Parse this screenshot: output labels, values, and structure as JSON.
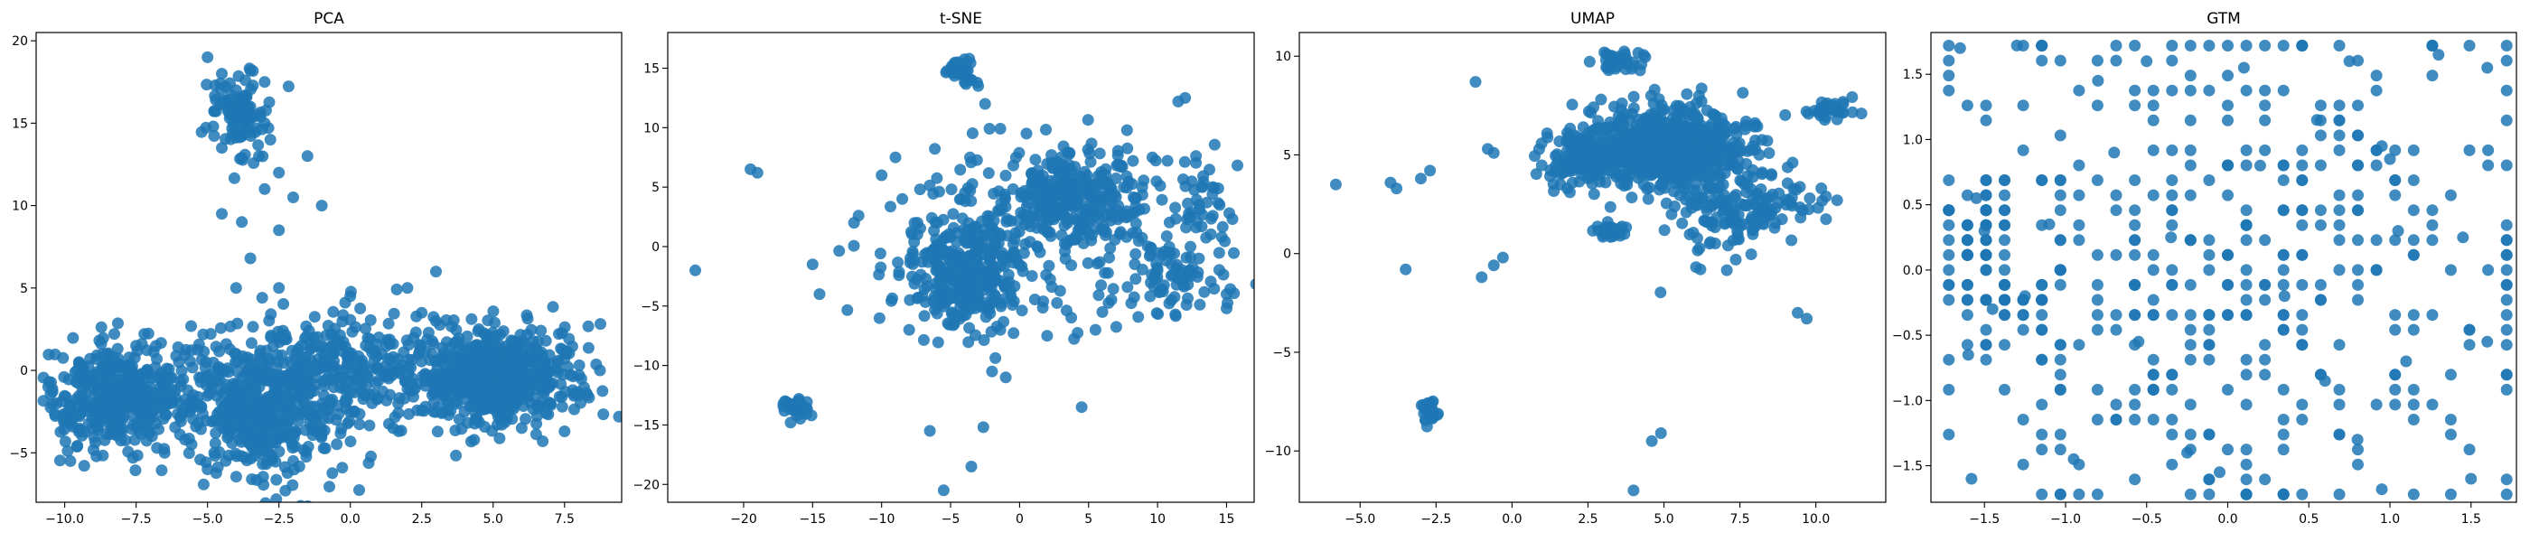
{
  "chart_data": [
    {
      "type": "scatter",
      "title": "PCA",
      "xlabel": "",
      "ylabel": "",
      "xlim": [
        -11.0,
        9.5
      ],
      "ylim": [
        -8.0,
        20.5
      ],
      "xticks": [
        -10.0,
        -7.5,
        -5.0,
        -2.5,
        0.0,
        2.5,
        5.0,
        7.5
      ],
      "xtick_labels": [
        "−10.0",
        "−7.5",
        "−5.0",
        "−2.5",
        "0.0",
        "2.5",
        "5.0",
        "7.5"
      ],
      "yticks": [
        -5,
        0,
        5,
        10,
        15,
        20
      ],
      "ytick_labels": [
        "−5",
        "0",
        "5",
        "10",
        "15",
        "20"
      ],
      "grid": false,
      "series": [
        {
          "color": "#1f77b4",
          "points": [
            [
              -5.0,
              19.0
            ],
            [
              -4.5,
              18.0
            ],
            [
              -3.5,
              18.2
            ],
            [
              -4.0,
              17.0
            ],
            [
              -3.0,
              17.5
            ],
            [
              -3.5,
              16.0
            ],
            [
              -4.2,
              15.5
            ],
            [
              -3.0,
              15.0
            ],
            [
              -4.8,
              14.8
            ],
            [
              -3.8,
              14.2
            ],
            [
              -2.8,
              14.0
            ],
            [
              -4.5,
              13.5
            ],
            [
              -3.2,
              13.0
            ],
            [
              -2.5,
              12.0
            ],
            [
              -1.5,
              13.0
            ],
            [
              -3.0,
              11.0
            ],
            [
              -2.0,
              10.5
            ],
            [
              -1.0,
              10.0
            ],
            [
              -4.5,
              9.5
            ],
            [
              -3.8,
              9.0
            ],
            [
              -2.5,
              8.5
            ],
            [
              -3.5,
              6.8
            ],
            [
              -2.5,
              5.0
            ],
            [
              -4.0,
              5.0
            ],
            [
              -9.5,
              0.5
            ],
            [
              -9.0,
              -2.5
            ],
            [
              -9.8,
              -5.5
            ],
            [
              -8.5,
              -1.0
            ],
            [
              -8.0,
              -3.5
            ],
            [
              -7.5,
              1.5
            ],
            [
              -7.0,
              -2.0
            ],
            [
              -6.5,
              -5.0
            ],
            [
              -6.0,
              0.5
            ],
            [
              -5.5,
              -1.5
            ],
            [
              -5.0,
              -6.0
            ],
            [
              -4.5,
              -3.0
            ],
            [
              -4.0,
              1.0
            ],
            [
              -3.5,
              -4.5
            ],
            [
              -3.0,
              -2.0
            ],
            [
              -2.5,
              2.0
            ],
            [
              -2.0,
              -5.5
            ],
            [
              -1.5,
              -1.0
            ],
            [
              -1.0,
              1.5
            ],
            [
              -0.5,
              -3.0
            ],
            [
              0.0,
              4.5
            ],
            [
              0.5,
              -1.5
            ],
            [
              1.0,
              2.0
            ],
            [
              1.5,
              -3.5
            ],
            [
              2.0,
              5.0
            ],
            [
              2.5,
              3.5
            ],
            [
              3.0,
              6.0
            ],
            [
              3.5,
              0.5
            ],
            [
              4.0,
              -2.5
            ],
            [
              4.5,
              2.5
            ],
            [
              5.0,
              -1.0
            ],
            [
              5.5,
              1.5
            ],
            [
              6.0,
              -3.5
            ],
            [
              6.5,
              0.0
            ],
            [
              7.0,
              -2.0
            ],
            [
              7.5,
              1.0
            ],
            [
              8.0,
              -1.5
            ],
            [
              8.3,
              -1.5
            ]
          ]
        }
      ],
      "clusters": [
        {
          "cx": -4.0,
          "cy": 15.5,
          "sx": 0.6,
          "sy": 1.3,
          "n": 110
        },
        {
          "cx": -8.2,
          "cy": -1.6,
          "sx": 1.2,
          "sy": 1.6,
          "n": 420
        },
        {
          "cx": -3.2,
          "cy": -2.2,
          "sx": 1.6,
          "sy": 2.0,
          "n": 520
        },
        {
          "cx": 0.0,
          "cy": 0.0,
          "sx": 1.8,
          "sy": 1.8,
          "n": 240
        },
        {
          "cx": 5.0,
          "cy": -0.4,
          "sx": 1.5,
          "sy": 1.5,
          "n": 650
        }
      ]
    },
    {
      "type": "scatter",
      "title": "t-SNE",
      "xlabel": "",
      "ylabel": "",
      "xlim": [
        -25.5,
        17.0
      ],
      "ylim": [
        -21.5,
        18.0
      ],
      "xticks": [
        -20,
        -15,
        -10,
        -5,
        0,
        5,
        10,
        15
      ],
      "xtick_labels": [
        "−20",
        "−15",
        "−10",
        "−5",
        "0",
        "5",
        "10",
        "15"
      ],
      "yticks": [
        -20,
        -15,
        -10,
        -5,
        0,
        5,
        10,
        15
      ],
      "ytick_labels": [
        "−20",
        "−15",
        "−10",
        "−5",
        "0",
        "5",
        "10",
        "15"
      ],
      "grid": false,
      "series": [
        {
          "color": "#1f77b4",
          "points": [
            [
              -23.5,
              -2.0
            ],
            [
              -19.5,
              6.5
            ],
            [
              -19.0,
              6.2
            ],
            [
              -17.0,
              -13.0
            ],
            [
              -16.5,
              -13.5
            ],
            [
              -16.0,
              -14.0
            ],
            [
              -15.0,
              -1.5
            ],
            [
              -14.5,
              -4.0
            ],
            [
              -12.0,
              2.0
            ],
            [
              -10.0,
              6.0
            ],
            [
              -9.0,
              7.5
            ],
            [
              -8.5,
              4.0
            ],
            [
              -8.0,
              -7.0
            ],
            [
              -6.5,
              -15.5
            ],
            [
              -5.5,
              -20.5
            ],
            [
              -4.5,
              15.5
            ],
            [
              -4.0,
              15.0
            ],
            [
              -3.5,
              14.0
            ],
            [
              -3.0,
              13.5
            ],
            [
              -2.5,
              12.0
            ],
            [
              -3.5,
              -18.5
            ],
            [
              -2.0,
              -10.5
            ],
            [
              -1.0,
              -11.0
            ],
            [
              0.5,
              9.5
            ],
            [
              2.0,
              -7.5
            ],
            [
              4.5,
              -13.5
            ],
            [
              5.5,
              -7.0
            ],
            [
              6.0,
              -5.5
            ],
            [
              12.0,
              12.5
            ],
            [
              11.5,
              12.2
            ],
            [
              14.0,
              5.0
            ],
            [
              14.5,
              3.5
            ],
            [
              15.0,
              -4.0
            ],
            [
              15.0,
              -5.2
            ],
            [
              13.0,
              -1.0
            ],
            [
              10.0,
              -2.0
            ],
            [
              11.0,
              -4.5
            ]
          ]
        }
      ],
      "clusters": [
        {
          "cx": -4.0,
          "cy": -2.5,
          "sx": 2.2,
          "sy": 2.2,
          "n": 320
        },
        {
          "cx": 4.0,
          "cy": 4.0,
          "sx": 2.4,
          "sy": 1.8,
          "n": 280
        },
        {
          "cx": 0.0,
          "cy": 1.0,
          "sx": 4.5,
          "sy": 4.5,
          "n": 180
        },
        {
          "cx": 11.0,
          "cy": -2.5,
          "sx": 2.2,
          "sy": 1.6,
          "n": 90
        },
        {
          "cx": 13.5,
          "cy": 4.0,
          "sx": 1.2,
          "sy": 1.5,
          "n": 40
        },
        {
          "cx": -4.2,
          "cy": 15.0,
          "sx": 0.6,
          "sy": 0.6,
          "n": 30
        },
        {
          "cx": -16.3,
          "cy": -13.5,
          "sx": 0.5,
          "sy": 0.5,
          "n": 30
        }
      ]
    },
    {
      "type": "scatter",
      "title": "UMAP",
      "xlabel": "",
      "ylabel": "",
      "xlim": [
        -7.0,
        12.3
      ],
      "ylim": [
        -12.6,
        11.2
      ],
      "xticks": [
        -5.0,
        -2.5,
        0.0,
        2.5,
        5.0,
        7.5,
        10.0
      ],
      "xtick_labels": [
        "−5.0",
        "−2.5",
        "0.0",
        "2.5",
        "5.0",
        "7.5",
        "10.0"
      ],
      "yticks": [
        -10,
        -5,
        0,
        5,
        10
      ],
      "ytick_labels": [
        "−10",
        "−5",
        "0",
        "5",
        "10"
      ],
      "grid": false,
      "series": [
        {
          "color": "#1f77b4",
          "points": [
            [
              -5.8,
              3.5
            ],
            [
              -4.0,
              3.6
            ],
            [
              -3.8,
              3.3
            ],
            [
              -3.0,
              3.8
            ],
            [
              -2.7,
              4.2
            ],
            [
              -3.5,
              -0.8
            ],
            [
              -1.2,
              8.7
            ],
            [
              -0.8,
              5.3
            ],
            [
              -0.6,
              5.1
            ],
            [
              -1.0,
              -1.2
            ],
            [
              -0.6,
              -0.6
            ],
            [
              -0.3,
              -0.2
            ],
            [
              -2.8,
              -7.8
            ],
            [
              -2.6,
              -8.3
            ],
            [
              -2.9,
              -8.1
            ],
            [
              4.0,
              -12.0
            ],
            [
              4.6,
              -9.5
            ],
            [
              4.9,
              -9.1
            ],
            [
              9.4,
              -3.0
            ],
            [
              9.7,
              -3.3
            ],
            [
              9.8,
              2.8
            ],
            [
              10.4,
              7.5
            ],
            [
              10.7,
              6.8
            ],
            [
              11.5,
              7.1
            ],
            [
              10.7,
              2.7
            ],
            [
              3.3,
              1.3
            ],
            [
              6.2,
              -0.8
            ],
            [
              7.0,
              1.5
            ],
            [
              8.0,
              2.5
            ],
            [
              3.3,
              10.0
            ],
            [
              4.0,
              9.5
            ],
            [
              1.6,
              3.5
            ],
            [
              2.5,
              3.8
            ]
          ]
        }
      ],
      "clusters": [
        {
          "cx": 5.0,
          "cy": 5.3,
          "sx": 1.4,
          "sy": 1.0,
          "n": 700
        },
        {
          "cx": 2.6,
          "cy": 4.8,
          "sx": 0.8,
          "sy": 0.6,
          "n": 150
        },
        {
          "cx": 6.8,
          "cy": 2.0,
          "sx": 0.8,
          "sy": 1.3,
          "n": 110
        },
        {
          "cx": 8.7,
          "cy": 2.6,
          "sx": 0.8,
          "sy": 0.8,
          "n": 60
        },
        {
          "cx": 3.3,
          "cy": 1.2,
          "sx": 0.3,
          "sy": 0.2,
          "n": 25
        },
        {
          "cx": 3.6,
          "cy": 9.8,
          "sx": 0.4,
          "sy": 0.3,
          "n": 40
        },
        {
          "cx": 10.4,
          "cy": 7.3,
          "sx": 0.4,
          "sy": 0.3,
          "n": 30
        },
        {
          "cx": -2.7,
          "cy": -8.0,
          "sx": 0.15,
          "sy": 0.25,
          "n": 25
        }
      ]
    },
    {
      "type": "scatter",
      "title": "GTM",
      "xlabel": "",
      "ylabel": "",
      "xlim": [
        -1.83,
        1.78
      ],
      "ylim": [
        -1.78,
        1.82
      ],
      "xticks": [
        -1.5,
        -1.0,
        -0.5,
        0.0,
        0.5,
        1.0,
        1.5
      ],
      "xtick_labels": [
        "−1.5",
        "−1.0",
        "−0.5",
        "0.0",
        "0.5",
        "1.0",
        "1.5"
      ],
      "yticks": [
        -1.5,
        -1.0,
        -0.5,
        0.0,
        0.5,
        1.0,
        1.5
      ],
      "ytick_labels": [
        "−1.5",
        "−1.0",
        "−0.5",
        "0.0",
        "0.5",
        "1.0",
        "1.5"
      ],
      "grid": false,
      "series": [
        {
          "color": "#1f77b4",
          "points": [
            [
              -1.65,
              1.7
            ],
            [
              -1.55,
              0.55
            ],
            [
              -1.5,
              0.3
            ],
            [
              -1.6,
              -0.65
            ],
            [
              -1.58,
              -1.6
            ],
            [
              -1.3,
              1.72
            ],
            [
              -1.1,
              0.35
            ],
            [
              -0.95,
              -1.45
            ],
            [
              -0.8,
              1.45
            ],
            [
              -0.7,
              0.9
            ],
            [
              -0.55,
              -0.55
            ],
            [
              -0.5,
              1.6
            ],
            [
              -0.35,
              0.25
            ],
            [
              -0.25,
              -1.4
            ],
            [
              -0.05,
              -1.55
            ],
            [
              0.1,
              1.55
            ],
            [
              0.2,
              0.8
            ],
            [
              0.35,
              -0.2
            ],
            [
              0.55,
              1.15
            ],
            [
              0.6,
              -0.85
            ],
            [
              0.75,
              1.6
            ],
            [
              0.8,
              -1.3
            ],
            [
              0.95,
              -1.68
            ],
            [
              1.05,
              0.3
            ],
            [
              1.1,
              -0.7
            ],
            [
              1.3,
              1.65
            ],
            [
              1.45,
              0.25
            ],
            [
              1.5,
              -1.6
            ],
            [
              1.6,
              1.55
            ],
            [
              1.6,
              -0.55
            ],
            [
              -1.25,
              -0.2
            ],
            [
              -1.45,
              -0.3
            ],
            [
              0.95,
              0.95
            ],
            [
              1.0,
              0.85
            ]
          ]
        }
      ],
      "clusters": [
        {
          "cx": -1.5,
          "cy": 0.3,
          "sx": 0.08,
          "sy": 0.25,
          "n": 60
        },
        {
          "cx": -1.35,
          "cy": -0.2,
          "sx": 0.1,
          "sy": 0.06,
          "n": 25
        },
        {
          "cx": 0.0,
          "cy": 0.0,
          "sx": 1.0,
          "sy": 1.0,
          "n": 420
        }
      ]
    }
  ]
}
